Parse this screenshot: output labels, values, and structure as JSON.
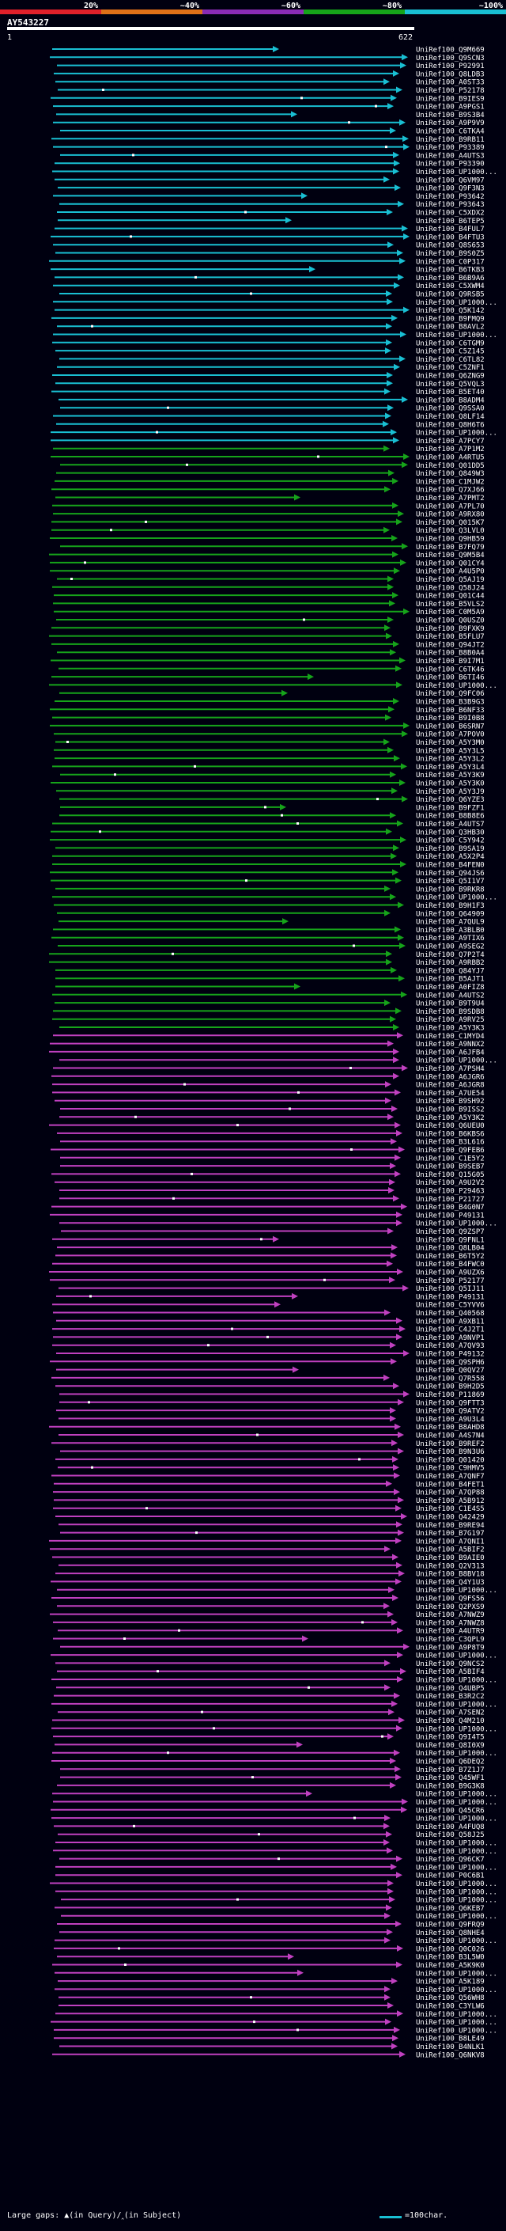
{
  "query_id": "AY543227",
  "colors": {
    "bg": "#000010",
    "c20": "#e0202a",
    "c40": "#e07018",
    "c60": "#8a2bb5",
    "c80": "#16a31a",
    "c100": "#19bfd3",
    "magenta": "#c040c0",
    "green": "#16a31a",
    "cyan": "#19bfd3",
    "white": "#ffffff"
  },
  "scale": {
    "labels": [
      "20%",
      "~40%",
      "~60%",
      "~80%",
      "~100%"
    ]
  },
  "axis": {
    "start_label": "1",
    "end_label": "622",
    "query_length": 622
  },
  "legend": {
    "left_text": "Large gaps: ▲(in Query)/‸(in Subject)",
    "right_text": "=100char."
  },
  "chart_data": {
    "type": "alignment",
    "x_range": [
      1,
      622
    ],
    "groups": [
      {
        "name": "",
        "color": "cyan",
        "ids": [
          "UniRef100_Q9M669",
          "UniRef100_Q9SCN3",
          "UniRef100_P92991",
          "UniRef100_Q8LDB3",
          "UniRef100_A0ST33",
          "UniRef100_P52178",
          "UniRef100_B9IES9",
          "UniRef100_A9PGS1",
          "UniRef100_B9S3B4",
          "UniRef100_A9P9V9",
          "UniRef100_C6TKA4",
          "UniRef100_B9RB11",
          "UniRef100_P93389",
          "UniRef100_A4UTS3",
          "UniRef100_P93390",
          "UniRef100_UP1000...",
          "UniRef100_Q6VM97",
          "UniRef100_Q9F3N3",
          "UniRef100_P93642",
          "UniRef100_P93643",
          "UniRef100_C5XDX2",
          "UniRef100_B6TEP5",
          "UniRef100_B4FUL7",
          "UniRef100_B4FTU3",
          "UniRef100_Q8S653",
          "UniRef100_B9S0Z5",
          "UniRef100_C0P317",
          "UniRef100_B6TKB3",
          "UniRef100_B6B9A6",
          "UniRef100_C5XWM4",
          "UniRef100_Q9RSB5",
          "UniRef100_UP1000...",
          "UniRef100_Q5K142",
          "UniRef100_B9FMQ9",
          "UniRef100_B8AVL2",
          "UniRef100_UP1000...",
          "UniRef100_C6TGM9",
          "UniRef100_C5Z145",
          "UniRef100_C6TL82",
          "UniRef100_C5ZNF1",
          "UniRef100_Q6ZNG9",
          "UniRef100_Q5VQL3",
          "UniRef100_B5ET40",
          "UniRef100_B8ADM4",
          "UniRef100_Q9SSA0",
          "UniRef100_Q8LF14",
          "UniRef100_Q8H6T6",
          "UniRef100_UP1000...",
          "UniRef100_A7PCY7"
        ]
      },
      {
        "name": "",
        "color": "green",
        "ids": [
          "UniRef100_A7P1M2",
          "UniRef100_A4RTU5",
          "UniRef100_Q01DD5",
          "UniRef100_Q849W3",
          "UniRef100_C1MJW2",
          "UniRef100_Q7XJ66",
          "UniRef100_A7PMT2",
          "UniRef100_A7PL70",
          "UniRef100_A9RX80",
          "UniRef100_Q015K7",
          "UniRef100_Q3LVL0",
          "UniRef100_Q9HB59",
          "UniRef100_B7FQ79",
          "UniRef100_Q9M5B4",
          "UniRef100_Q01CY4",
          "UniRef100_A4U5P0",
          "UniRef100_Q5AJ19",
          "UniRef100_Q58J24",
          "UniRef100_Q01C44",
          "UniRef100_B5VLS2",
          "UniRef100_C0M5A9",
          "UniRef100_Q0USZ0",
          "UniRef100_B9FXK9",
          "UniRef100_B5FLU7",
          "UniRef100_Q94JT2",
          "UniRef100_B8B0A4",
          "UniRef100_B9I7M1",
          "UniRef100_C6TK46",
          "UniRef100_B6TI46",
          "UniRef100_UP1000...",
          "UniRef100_Q9FC06",
          "UniRef100_B3B9G3",
          "UniRef100_B6NF33",
          "UniRef100_B9I0B8",
          "UniRef100_B6SRN7",
          "UniRef100_A7POV0",
          "UniRef100_A5Y3M0",
          "UniRef100_A5Y3L5",
          "UniRef100_A5Y3L2",
          "UniRef100_A5Y3L4",
          "UniRef100_A5Y3K9",
          "UniRef100_A5Y3K0",
          "UniRef100_A5Y3J9",
          "UniRef100_Q6YZE3",
          "UniRef100_B9FZF1",
          "UniRef100_B8B8E6",
          "UniRef100_A4UTS7",
          "UniRef100_Q3HB30",
          "UniRef100_C5Y942",
          "UniRef100_B9SA19",
          "UniRef100_A5X2P4",
          "UniRef100_B4FEN0",
          "UniRef100_Q94JS6",
          "UniRef100_Q5I1V7",
          "UniRef100_B9RKR8",
          "UniRef100_UP1000...",
          "UniRef100_B9H1F3",
          "UniRef100_Q64909",
          "UniRef100_A7QUL9",
          "UniRef100_A3BLB0",
          "UniRef100_A9TIX6",
          "UniRef100_A9SEG2",
          "UniRef100_Q7P2T4",
          "UniRef100_A9RBB2",
          "UniRef100_Q84YJ7",
          "UniRef100_B5AJT1",
          "UniRef100_A0FIZ8",
          "UniRef100_A4UTS2",
          "UniRef100_B9T9U4",
          "UniRef100_B9SDB8",
          "UniRef100_A9RV25",
          "UniRef100_A5Y3K3"
        ]
      },
      {
        "name": "",
        "color": "magenta",
        "ids": [
          "UniRef100_C1MYD4",
          "UniRef100_A9NNX2",
          "UniRef100_A6JFB4",
          "UniRef100_UP1000...",
          "UniRef100_A7PSH4",
          "UniRef100_A6JGR6",
          "UniRef100_A6JGR8",
          "UniRef100_A7UE54",
          "UniRef100_B9SH92",
          "UniRef100_B9ISS2",
          "UniRef100_A5Y3K2",
          "UniRef100_Q6UEU0",
          "UniRef100_B6KBS6",
          "UniRef100_B3L616",
          "UniRef100_Q9FEB6",
          "UniRef100_C1E5Y2",
          "UniRef100_B9SEB7",
          "UniRef100_Q15G05",
          "UniRef100_A9U2V2",
          "UniRef100_P29463",
          "UniRef100_P21727",
          "UniRef100_B4G0N7",
          "UniRef100_P49131",
          "UniRef100_UP1000...",
          "UniRef100_Q9ZSP7",
          "UniRef100_Q9FNL1",
          "UniRef100_Q8LB04",
          "UniRef100_B6T5Y2",
          "UniRef100_B4FWC0",
          "UniRef100_A9UZX6",
          "UniRef100_P52177",
          "UniRef100_Q5IJ11",
          "UniRef100_P49131",
          "UniRef100_C5YVV6",
          "UniRef100_Q40568",
          "UniRef100_A9XB11",
          "UniRef100_C4J2T1",
          "UniRef100_A9NVP1",
          "UniRef100_A7QV93",
          "UniRef100_P49132",
          "UniRef100_Q9SPH6",
          "UniRef100_Q0QV27",
          "UniRef100_Q7R558",
          "UniRef100_B9H2D5",
          "UniRef100_P11869",
          "UniRef100_Q9FTT3",
          "UniRef100_Q9ATV2",
          "UniRef100_A9U3L4",
          "UniRef100_B8AHD8",
          "UniRef100_A4S7N4",
          "UniRef100_B9REF2",
          "UniRef100_B9N3U6",
          "UniRef100_Q01420",
          "UniRef100_C9HMV5",
          "UniRef100_A7QNF7",
          "UniRef100_B4FET1",
          "UniRef100_A7QP88",
          "UniRef100_A5B912",
          "UniRef100_C1E4S5",
          "UniRef100_Q42429",
          "UniRef100_B9RE94",
          "UniRef100_B7G197",
          "UniRef100_A7QNI1",
          "UniRef100_A5BIF2",
          "UniRef100_B9AIE0",
          "UniRef100_Q2V313",
          "UniRef100_B8BV18",
          "UniRef100_Q4Y1U3",
          "UniRef100_UP1000...",
          "UniRef100_Q9FS56",
          "UniRef100_Q2PXS9",
          "UniRef100_A7NWZ9",
          "UniRef100_A7NWZ8",
          "UniRef100_A4UTR9",
          "UniRef100_C3QPL9",
          "UniRef100_A9P8T9",
          "UniRef100_UP1000...",
          "UniRef100_Q9NCS2",
          "UniRef100_A5BIF4",
          "UniRef100_UP1000...",
          "UniRef100_Q4UBP5",
          "UniRef100_B3R2C2",
          "UniRef100_UP1000...",
          "UniRef100_A7SEN2",
          "UniRef100_Q4M210",
          "UniRef100_UP1000...",
          "UniRef100_Q9I4T5",
          "UniRef100_Q8I0X9",
          "UniRef100_UP1000...",
          "UniRef100_Q6DEQ2",
          "UniRef100_B7Z1J7",
          "UniRef100_Q45WF1",
          "UniRef100_B9G3K8",
          "UniRef100_UP1000...",
          "UniRef100_UP1000...",
          "UniRef100_Q45CR6",
          "UniRef100_UP1000...",
          "UniRef100_A4FUQ8",
          "UniRef100_Q58J25",
          "UniRef100_UP1000...",
          "UniRef100_UP1000...",
          "UniRef100_Q96CK7",
          "UniRef100_UP1000...",
          "UniRef100_P0C6B1",
          "UniRef100_UP1000...",
          "UniRef100_UP1000...",
          "UniRef100_UP1000...",
          "UniRef100_Q6KEB7",
          "UniRef100_UP1000...",
          "UniRef100_Q9FRQ9",
          "UniRef100_Q8NHE4",
          "UniRef100_UP1000...",
          "UniRef100_Q0C026",
          "UniRef100_B3L5W0",
          "UniRef100_A5K9K0",
          "UniRef100_UP1000...",
          "UniRef100_A5K189",
          "UniRef100_UP1000...",
          "UniRef100_Q56WH8",
          "UniRef100_C3YLW6",
          "UniRef100_UP1000...",
          "UniRef100_UP1000...",
          "UniRef100_UP1000...",
          "UniRef100_B8LE49",
          "UniRef100_B4NLK1",
          "UniRef100_Q6NKV8"
        ]
      }
    ]
  }
}
